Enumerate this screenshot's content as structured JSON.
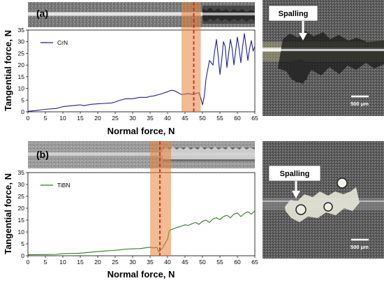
{
  "chart_data": [
    {
      "type": "line",
      "panel_label": "(a)",
      "xlabel": "Normal force, N",
      "ylabel": "Tangential force, N",
      "xlim": [
        0,
        65
      ],
      "ylim": [
        0,
        35
      ],
      "xticks": [
        0,
        5,
        10,
        15,
        20,
        25,
        30,
        35,
        40,
        45,
        50,
        55,
        60,
        65
      ],
      "yticks": [
        0,
        5,
        10,
        15,
        20,
        25,
        30,
        35
      ],
      "critical_load": 47.5,
      "critical_band": [
        44,
        49.5
      ],
      "legend_position": "top-left",
      "series": [
        {
          "name": "CrN",
          "color": "#1f1f8f",
          "x": [
            0,
            2,
            4,
            6,
            8,
            9,
            10,
            12,
            14,
            15,
            16,
            18,
            20,
            22,
            24,
            25,
            26,
            27,
            28,
            30,
            32,
            34,
            35,
            36,
            38,
            40,
            41,
            42,
            43,
            44,
            45,
            46,
            47,
            48,
            49,
            49.5,
            50,
            50.5,
            51,
            52,
            53,
            53.5,
            54,
            54.5,
            55,
            55.5,
            56,
            56.5,
            57,
            57.5,
            58,
            58.5,
            59,
            59.5,
            60,
            60.5,
            61,
            61.5,
            62,
            62.5,
            63,
            63.5,
            64,
            64.5,
            65
          ],
          "y": [
            0.2,
            0.5,
            0.9,
            1.2,
            1.4,
            1.8,
            2.2,
            2.5,
            2.8,
            3.0,
            2.6,
            3.2,
            3.4,
            3.6,
            3.8,
            4.2,
            4.8,
            5.2,
            5.6,
            5.6,
            6.2,
            6.2,
            6.6,
            6.8,
            7.6,
            8.6,
            9.2,
            9.0,
            8.2,
            7.4,
            7.6,
            7.8,
            7.5,
            7.8,
            8.2,
            6.0,
            3.0,
            6.5,
            14.0,
            22.0,
            20.0,
            26.0,
            31.0,
            24.0,
            16.0,
            22.0,
            30.0,
            28.0,
            19.0,
            25.0,
            31.0,
            27.0,
            20.0,
            26.0,
            32.0,
            27.0,
            21.0,
            28.0,
            33.5,
            28.0,
            22.0,
            27.0,
            30.5,
            26.0,
            28.0
          ]
        }
      ],
      "micrograph_label": "Spalling",
      "scale_bar": "500 μm"
    },
    {
      "type": "line",
      "panel_label": "(b)",
      "xlabel": "Normal force, N",
      "ylabel": "Tangential force, N",
      "xlim": [
        0,
        65
      ],
      "ylim": [
        0,
        35
      ],
      "xticks": [
        0,
        5,
        10,
        15,
        20,
        25,
        30,
        35,
        40,
        45,
        50,
        55,
        60,
        65
      ],
      "yticks": [
        0,
        5,
        10,
        15,
        20,
        25,
        30,
        35
      ],
      "critical_load": 37.8,
      "critical_band": [
        35,
        41
      ],
      "legend_position": "top-left",
      "series": [
        {
          "name": "TiBN",
          "color": "#2e7d23",
          "x": [
            0,
            4,
            8,
            10,
            14,
            16,
            18,
            20,
            22,
            24,
            26,
            28,
            30,
            32,
            34,
            35,
            36,
            37,
            37.5,
            38,
            38.5,
            39,
            40,
            40.5,
            41,
            42,
            43,
            44,
            45,
            46,
            47,
            48,
            49,
            50,
            51,
            52,
            53,
            54,
            55,
            56,
            57,
            58,
            59,
            60,
            61,
            62,
            63,
            64,
            65
          ],
          "y": [
            0.4,
            0.5,
            0.6,
            0.9,
            1.0,
            1.2,
            1.5,
            1.8,
            2.0,
            2.2,
            2.4,
            2.8,
            2.9,
            3.0,
            3.4,
            3.6,
            3.3,
            3.5,
            1.5,
            2.5,
            3.2,
            4.5,
            7.0,
            10.5,
            11.0,
            11.5,
            12.0,
            12.5,
            13.0,
            12.8,
            13.5,
            14.0,
            13.2,
            14.5,
            15.0,
            14.0,
            15.5,
            16.0,
            15.2,
            16.5,
            17.0,
            16.0,
            17.5,
            18.0,
            16.5,
            17.8,
            18.5,
            17.5,
            19.0
          ]
        }
      ],
      "micrograph_label": "Spalling",
      "scale_bar": "500 μm"
    }
  ]
}
